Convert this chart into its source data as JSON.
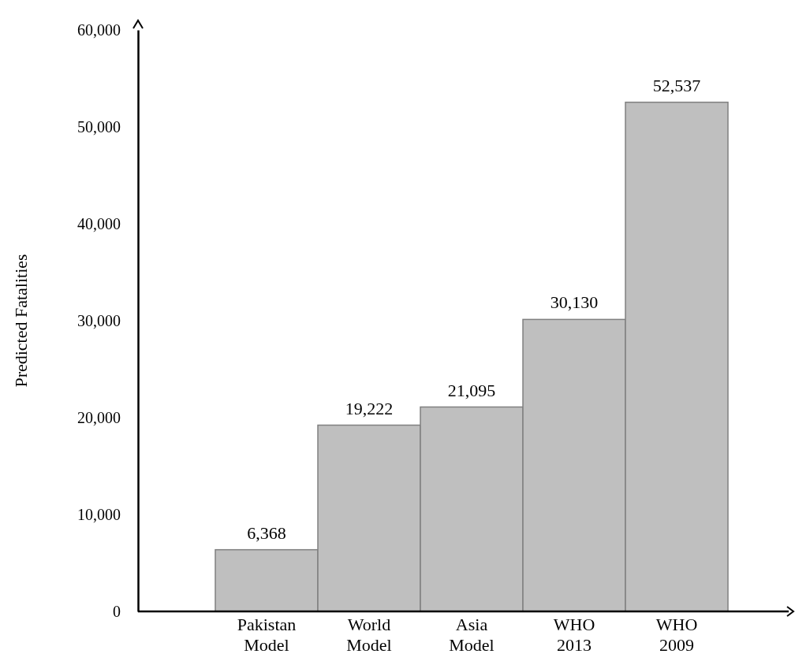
{
  "chart_data": {
    "type": "bar",
    "ylabel": "Predicted Fatalities",
    "categories": [
      "Pakistan Model",
      "World Model",
      "Asia Model",
      "WHO 2013",
      "WHO 2009"
    ],
    "values": [
      6368,
      19222,
      21095,
      30130,
      52537
    ],
    "color": "#bfbfbf",
    "ylim": [
      0,
      60000
    ],
    "yticks": [
      {
        "value": 0,
        "label": "0"
      },
      {
        "value": 10000,
        "label": "10,000"
      },
      {
        "value": 20000,
        "label": "20,000"
      },
      {
        "value": 30000,
        "label": "30,000"
      },
      {
        "value": 40000,
        "label": "40,000"
      },
      {
        "value": 50000,
        "label": "50,000"
      },
      {
        "value": 60000,
        "label": "60,000"
      }
    ],
    "value_labels": [
      "6,368",
      "19,222",
      "21,095",
      "30,130",
      "52,537"
    ],
    "grid": false
  }
}
